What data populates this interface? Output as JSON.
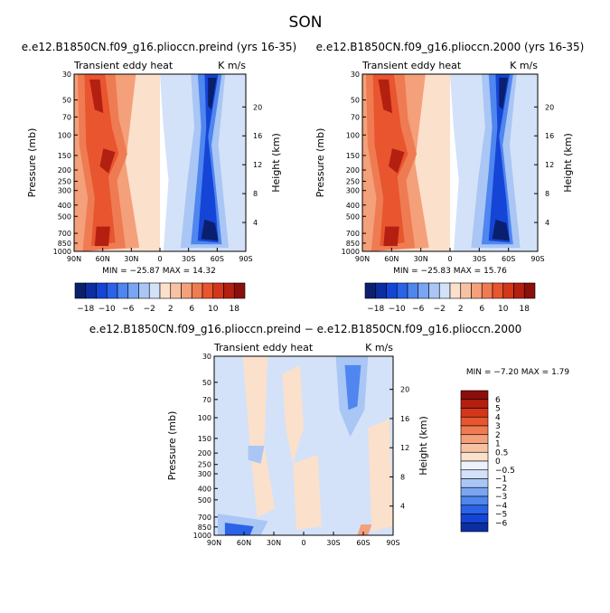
{
  "season_title": "SON",
  "chart_data": [
    {
      "type": "heatmap",
      "title": "e.e12.B1850CN.f09_g16.plioccn.preind (yrs 16-35)",
      "left_string": "Transient eddy heat",
      "right_string": "K m/s",
      "ylabel": "Pressure (mb)",
      "ylabel_right": "Height (km)",
      "x_ticks": [
        "90N",
        "60N",
        "30N",
        "0",
        "30S",
        "60S",
        "90S"
      ],
      "y_ticks": [
        "30",
        "50",
        "70",
        "100",
        "150",
        "200",
        "250",
        "300",
        "400",
        "500",
        "700",
        "850",
        "1000"
      ],
      "y_right_ticks": [
        "20",
        "16",
        "12",
        "8",
        "4"
      ],
      "min_max_text": "MIN = −25.87   MAX =  14.32",
      "stats": {
        "min": -25.87,
        "max": 14.32
      },
      "colorbar_orientation": "horizontal",
      "colorbar_labels": [
        "−18",
        "−10",
        "−6",
        "−2",
        "2",
        "6",
        "10",
        "18"
      ],
      "colorbar_colors": [
        "#0a1f6e",
        "#0b2ea3",
        "#1545d6",
        "#2a63e8",
        "#4f86ef",
        "#7aa5f2",
        "#a9c6f5",
        "#d3e2f8",
        "#fbe0cc",
        "#f7c2a4",
        "#f4a07a",
        "#ef7b52",
        "#e8552e",
        "#d4361b",
        "#b31f10",
        "#8b0f0a"
      ]
    },
    {
      "type": "heatmap",
      "title": "e.e12.B1850CN.f09_g16.plioccn.2000 (yrs 16-35)",
      "left_string": "Transient eddy heat",
      "right_string": "K m/s",
      "ylabel": "Pressure (mb)",
      "ylabel_right": "Height (km)",
      "x_ticks": [
        "90N",
        "60N",
        "30N",
        "0",
        "30S",
        "60S",
        "90S"
      ],
      "y_ticks": [
        "30",
        "50",
        "70",
        "100",
        "150",
        "200",
        "250",
        "300",
        "400",
        "500",
        "700",
        "850",
        "1000"
      ],
      "y_right_ticks": [
        "20",
        "16",
        "12",
        "8",
        "4"
      ],
      "min_max_text": "MIN = −25.83   MAX =  15.76",
      "stats": {
        "min": -25.83,
        "max": 15.76
      },
      "colorbar_orientation": "horizontal",
      "colorbar_labels": [
        "−18",
        "−10",
        "−6",
        "−2",
        "2",
        "6",
        "10",
        "18"
      ],
      "colorbar_colors": [
        "#0a1f6e",
        "#0b2ea3",
        "#1545d6",
        "#2a63e8",
        "#4f86ef",
        "#7aa5f2",
        "#a9c6f5",
        "#d3e2f8",
        "#fbe0cc",
        "#f7c2a4",
        "#f4a07a",
        "#ef7b52",
        "#e8552e",
        "#d4361b",
        "#b31f10",
        "#8b0f0a"
      ]
    },
    {
      "type": "heatmap",
      "title": "e.e12.B1850CN.f09_g16.plioccn.preind − e.e12.B1850CN.f09_g16.plioccn.2000",
      "left_string": "Transient eddy heat",
      "right_string": "K m/s",
      "ylabel": "Pressure (mb)",
      "ylabel_right": "Height (km)",
      "x_ticks": [
        "90N",
        "60N",
        "30N",
        "0",
        "30S",
        "60S",
        "90S"
      ],
      "y_ticks": [
        "30",
        "50",
        "70",
        "100",
        "150",
        "200",
        "250",
        "300",
        "400",
        "500",
        "700",
        "850",
        "1000"
      ],
      "y_right_ticks": [
        "20",
        "16",
        "12",
        "8",
        "4"
      ],
      "min_max_text": "MIN =   −7.20   MAX =    1.79",
      "stats": {
        "min": -7.2,
        "max": 1.79
      },
      "colorbar_orientation": "vertical",
      "colorbar_labels": [
        "6",
        "5",
        "4",
        "3",
        "2",
        "1",
        "0.5",
        "0",
        "−0.5",
        "−1",
        "−2",
        "−3",
        "−4",
        "−5",
        "−6"
      ],
      "colorbar_colors": [
        "#8b0f0a",
        "#b31f10",
        "#d4361b",
        "#e8552e",
        "#ef7b52",
        "#f4a07a",
        "#f7c2a4",
        "#fbe0cc",
        "#ecf2fb",
        "#d3e2f8",
        "#a9c6f5",
        "#7aa5f2",
        "#4f86ef",
        "#2a63e8",
        "#1545d6",
        "#0b2ea3"
      ]
    }
  ]
}
